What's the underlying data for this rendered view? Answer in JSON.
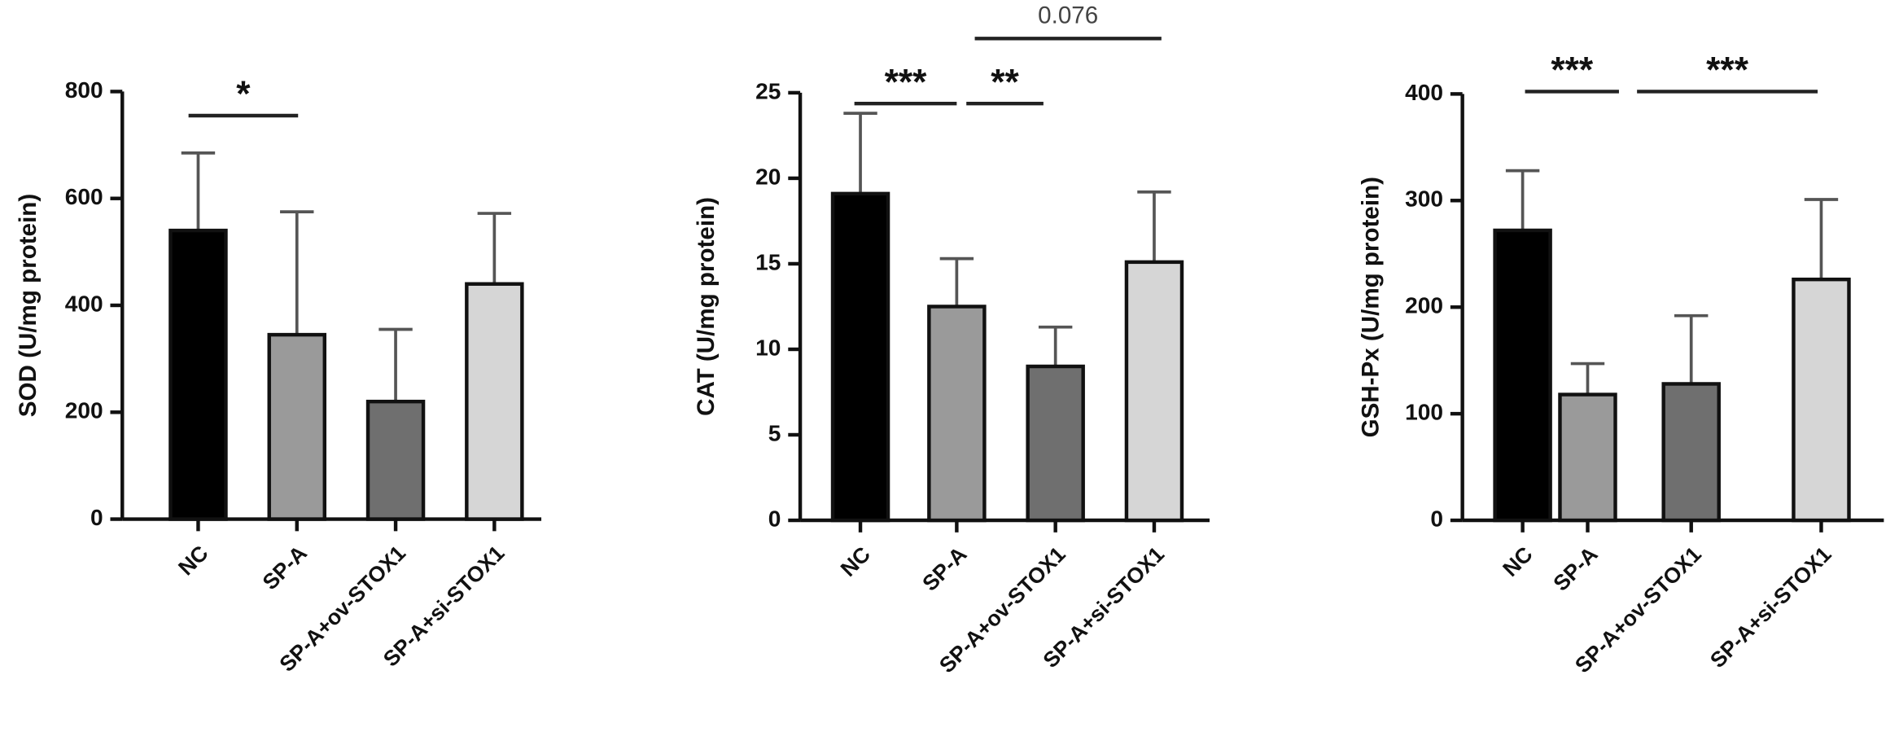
{
  "chart_data": [
    {
      "type": "bar",
      "ylabel": "SOD (U/mg protein)",
      "categories": [
        "NC",
        "SP-A",
        "SP-A+ov-STOX1",
        "SP-A+si-STOX1"
      ],
      "values": [
        540,
        345,
        220,
        440
      ],
      "errors": [
        145,
        230,
        135,
        132
      ],
      "colors": [
        "#000000",
        "#9a9a9a",
        "#6f6f6f",
        "#d6d6d6"
      ],
      "ylim": [
        0,
        800
      ],
      "yticks": [
        0,
        200,
        400,
        600,
        800
      ],
      "annotations": [
        "*"
      ]
    },
    {
      "type": "bar",
      "ylabel": "CAT  (U/mg protein)",
      "categories": [
        "NC",
        "SP-A",
        "SP-A+ov-STOX1",
        "SP-A+si-STOX1"
      ],
      "values": [
        19.1,
        12.5,
        9.0,
        15.1
      ],
      "errors": [
        4.7,
        2.8,
        2.3,
        4.1
      ],
      "colors": [
        "#000000",
        "#9a9a9a",
        "#6f6f6f",
        "#d6d6d6"
      ],
      "ylim": [
        0,
        25
      ],
      "yticks": [
        0,
        5,
        10,
        15,
        20,
        25
      ],
      "annotations": [
        "***",
        "**",
        "0.076"
      ]
    },
    {
      "type": "bar",
      "ylabel": "GSH-Px (U/mg protein)",
      "categories": [
        "NC",
        "SP-A",
        "SP-A+ov-STOX1",
        "SP-A+si-STOX1"
      ],
      "values": [
        272,
        118,
        128,
        226
      ],
      "errors": [
        56,
        29,
        64,
        75
      ],
      "colors": [
        "#000000",
        "#9a9a9a",
        "#6f6f6f",
        "#d6d6d6"
      ],
      "ylim": [
        0,
        400
      ],
      "yticks": [
        0,
        100,
        200,
        300,
        400
      ],
      "annotations": [
        "***",
        "***"
      ]
    }
  ]
}
